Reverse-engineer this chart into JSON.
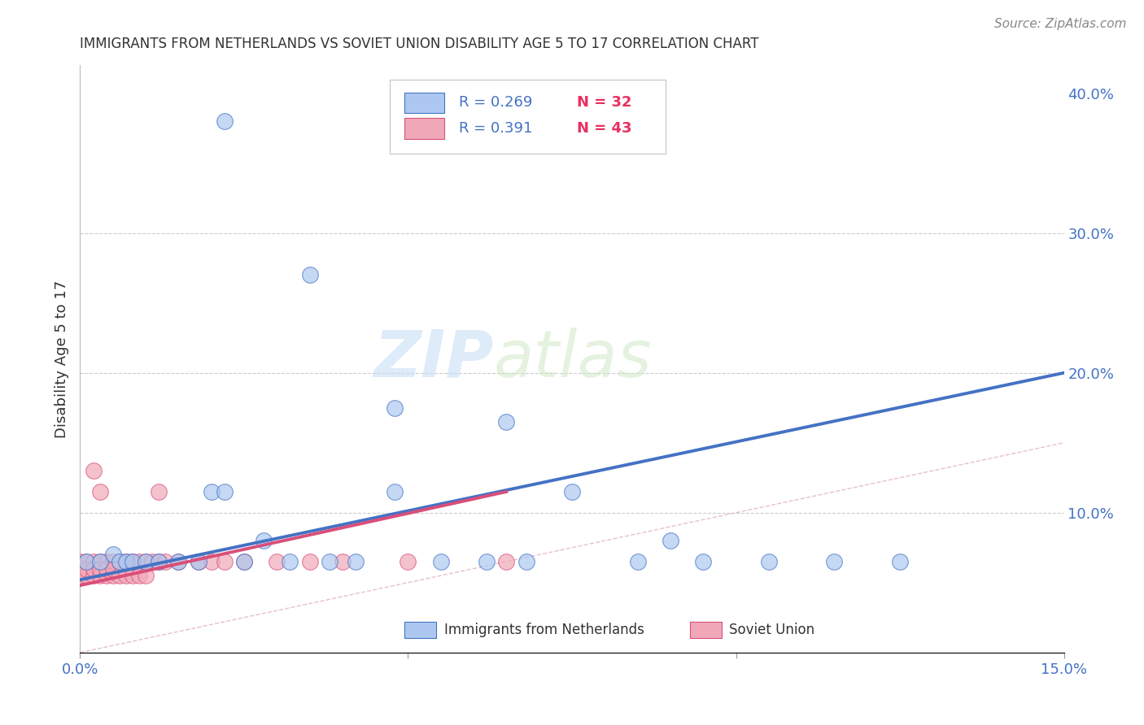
{
  "title": "IMMIGRANTS FROM NETHERLANDS VS SOVIET UNION DISABILITY AGE 5 TO 17 CORRELATION CHART",
  "source": "Source: ZipAtlas.com",
  "ylabel": "Disability Age 5 to 17",
  "xlim": [
    0.0,
    0.15
  ],
  "ylim": [
    0.0,
    0.42
  ],
  "netherlands_R": 0.269,
  "netherlands_N": 32,
  "soviet_R": 0.391,
  "soviet_N": 43,
  "netherlands_color": "#adc8f0",
  "netherlands_line_color": "#4472c4",
  "soviet_color": "#f0a8b8",
  "soviet_line_color": "#d94f7a",
  "legend_label_netherlands": "Immigrants from Netherlands",
  "legend_label_soviet": "Soviet Union",
  "watermark_zip": "ZIP",
  "watermark_atlas": "atlas",
  "background_color": "#ffffff",
  "grid_color": "#cccccc",
  "nl_line_x0": 0.0,
  "nl_line_y0": 0.052,
  "nl_line_x1": 0.15,
  "nl_line_y1": 0.2,
  "su_line_x0": 0.0,
  "su_line_y0": 0.048,
  "su_line_x1": 0.065,
  "su_line_y1": 0.115,
  "nl_x": [
    0.001,
    0.003,
    0.005,
    0.006,
    0.007,
    0.008,
    0.01,
    0.012,
    0.015,
    0.018,
    0.02,
    0.022,
    0.025,
    0.028,
    0.032,
    0.038,
    0.042,
    0.048,
    0.055,
    0.062,
    0.068,
    0.075,
    0.085,
    0.09,
    0.095,
    0.105,
    0.115,
    0.125,
    0.022,
    0.035,
    0.048,
    0.065
  ],
  "nl_y": [
    0.065,
    0.065,
    0.07,
    0.065,
    0.065,
    0.065,
    0.065,
    0.065,
    0.065,
    0.065,
    0.115,
    0.115,
    0.065,
    0.08,
    0.065,
    0.065,
    0.065,
    0.115,
    0.065,
    0.065,
    0.065,
    0.115,
    0.065,
    0.08,
    0.065,
    0.065,
    0.065,
    0.065,
    0.38,
    0.27,
    0.175,
    0.165
  ],
  "su_x": [
    0.0,
    0.0,
    0.001,
    0.001,
    0.001,
    0.002,
    0.002,
    0.002,
    0.003,
    0.003,
    0.003,
    0.004,
    0.004,
    0.004,
    0.005,
    0.005,
    0.005,
    0.006,
    0.006,
    0.007,
    0.007,
    0.008,
    0.008,
    0.009,
    0.009,
    0.01,
    0.01,
    0.011,
    0.012,
    0.013,
    0.015,
    0.018,
    0.02,
    0.022,
    0.025,
    0.03,
    0.035,
    0.04,
    0.05,
    0.065,
    0.002,
    0.003,
    0.012
  ],
  "su_y": [
    0.065,
    0.055,
    0.065,
    0.055,
    0.06,
    0.065,
    0.055,
    0.06,
    0.065,
    0.055,
    0.06,
    0.065,
    0.055,
    0.06,
    0.065,
    0.055,
    0.06,
    0.065,
    0.055,
    0.065,
    0.055,
    0.065,
    0.055,
    0.065,
    0.055,
    0.065,
    0.055,
    0.065,
    0.065,
    0.065,
    0.065,
    0.065,
    0.065,
    0.065,
    0.065,
    0.065,
    0.065,
    0.065,
    0.065,
    0.065,
    0.13,
    0.115,
    0.115
  ]
}
